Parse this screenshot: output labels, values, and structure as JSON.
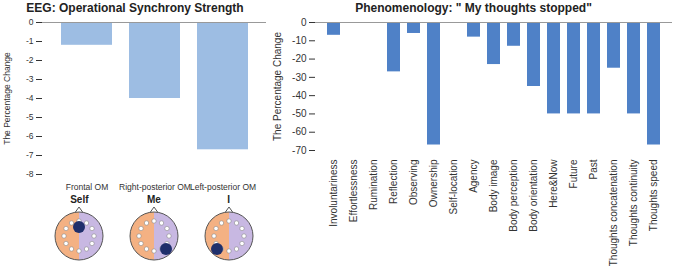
{
  "chart_data": [
    {
      "type": "bar",
      "title": "EEG: Operational Synchrony Strength",
      "y_label": "The Percentage Change",
      "categories": [
        "Frontal OM",
        "Right-posterior OM",
        "Left-posterior OM"
      ],
      "values": [
        -1.2,
        -4,
        -6.7
      ],
      "color": "#9dbde3",
      "ylim": [
        -8,
        0
      ],
      "yticks": [
        -8,
        -7,
        -6,
        -5,
        -4,
        -3,
        -2,
        -1,
        0
      ],
      "grid": false,
      "annotations": [
        "Self",
        "Me",
        "I"
      ]
    },
    {
      "type": "bar",
      "title": "Phenomenology: \" My thoughts stopped\"",
      "y_label": "The Percentage Change",
      "categories": [
        "Involuntariness",
        "Effortlessness",
        "Rumination",
        "Reflection",
        "Observing",
        "Ownership",
        "Self-location",
        "Agency",
        "Body image",
        "Body perception",
        "Body orientation",
        "Here&Now",
        "Future",
        "Past",
        "Thoughts concatenation",
        "Thoughts continuity",
        "Thoughts speed"
      ],
      "values": [
        -7,
        0,
        0,
        -27,
        -6,
        -67,
        0,
        -8,
        -23,
        -13,
        -35,
        -50,
        -50,
        -50,
        -25,
        -50,
        -67
      ],
      "color": "#4f81c7",
      "ylim": [
        -70,
        0
      ],
      "yticks": [
        -70,
        -60,
        -50,
        -40,
        -30,
        -20,
        -10,
        0
      ],
      "grid": false
    }
  ]
}
